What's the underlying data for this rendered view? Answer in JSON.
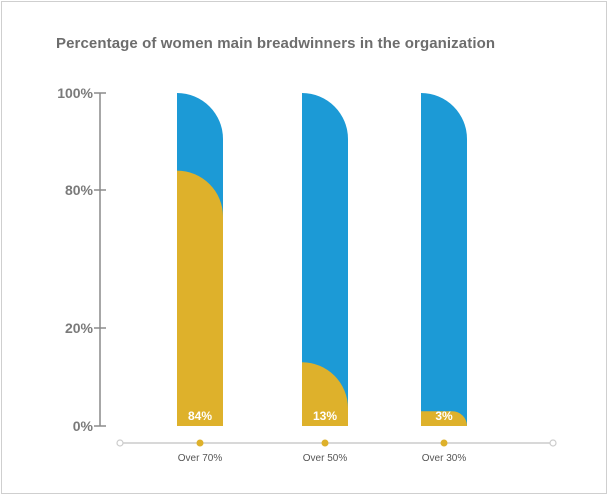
{
  "colors": {
    "remaining": "#1c9ad6",
    "women": "#deb12b",
    "axis": "#8a8a8a",
    "baseline": "#cccccc"
  },
  "chart_data": {
    "type": "bar",
    "title": "Percentage of women main breadwinners in the organization",
    "categories": [
      "Over 70%",
      "Over 50%",
      "Over 30%"
    ],
    "values": [
      84,
      13,
      3
    ],
    "value_labels": [
      "84%",
      "13%",
      "3%"
    ],
    "ylim": [
      0,
      100
    ],
    "yticks": [
      {
        "value": 0,
        "label": "0%"
      },
      {
        "value": 20,
        "label": "20%"
      },
      {
        "value": 80,
        "label": "80%"
      },
      {
        "value": 100,
        "label": "100%"
      }
    ],
    "axis_break": "between 20% and 80%",
    "grid": false,
    "legend": "none"
  }
}
